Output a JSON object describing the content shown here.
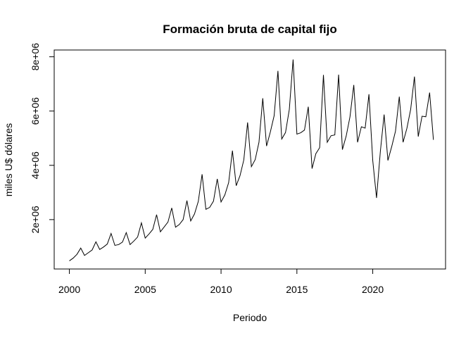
{
  "chart_data": {
    "type": "line",
    "title": "Formación bruta de capital fijo",
    "xlabel": "Periodo",
    "ylabel": "miles U$ dólares",
    "xlim": [
      1999.0,
      2024.8
    ],
    "ylim": [
      180000,
      8250000
    ],
    "x_ticks": [
      2000,
      2005,
      2010,
      2015,
      2020
    ],
    "x_tick_labels": [
      "2000",
      "2005",
      "2010",
      "2015",
      "2020"
    ],
    "y_ticks": [
      2000000,
      4000000,
      6000000,
      8000000
    ],
    "y_tick_labels": [
      "2e+06",
      "4e+06",
      "6e+06",
      "8e+06"
    ],
    "grid": false,
    "legend": "none",
    "line_color": "#000000",
    "series": [
      {
        "start": 2000.0,
        "frequency": 4,
        "values": [
          480000,
          580000,
          720000,
          950000,
          680000,
          780000,
          880000,
          1180000,
          900000,
          990000,
          1100000,
          1490000,
          1050000,
          1080000,
          1170000,
          1520000,
          1080000,
          1210000,
          1360000,
          1880000,
          1320000,
          1470000,
          1640000,
          2180000,
          1550000,
          1730000,
          1910000,
          2430000,
          1720000,
          1820000,
          2000000,
          2700000,
          1950000,
          2210000,
          2670000,
          3670000,
          2380000,
          2450000,
          2680000,
          3500000,
          2650000,
          2910000,
          3360000,
          4540000,
          3250000,
          3620000,
          4200000,
          5580000,
          3950000,
          4210000,
          4850000,
          6470000,
          4710000,
          5230000,
          5830000,
          7480000,
          4970000,
          5210000,
          6060000,
          7900000,
          5150000,
          5200000,
          5300000,
          6160000,
          3880000,
          4430000,
          4650000,
          7330000,
          4850000,
          5090000,
          5120000,
          7340000,
          4580000,
          5080000,
          5790000,
          6960000,
          4850000,
          5420000,
          5370000,
          6620000,
          4180000,
          2800000,
          4500000,
          5870000,
          4180000,
          4690000,
          5260000,
          6530000,
          4850000,
          5360000,
          6060000,
          7270000,
          5060000,
          5810000,
          5790000,
          6680000,
          4940000
        ]
      }
    ]
  }
}
